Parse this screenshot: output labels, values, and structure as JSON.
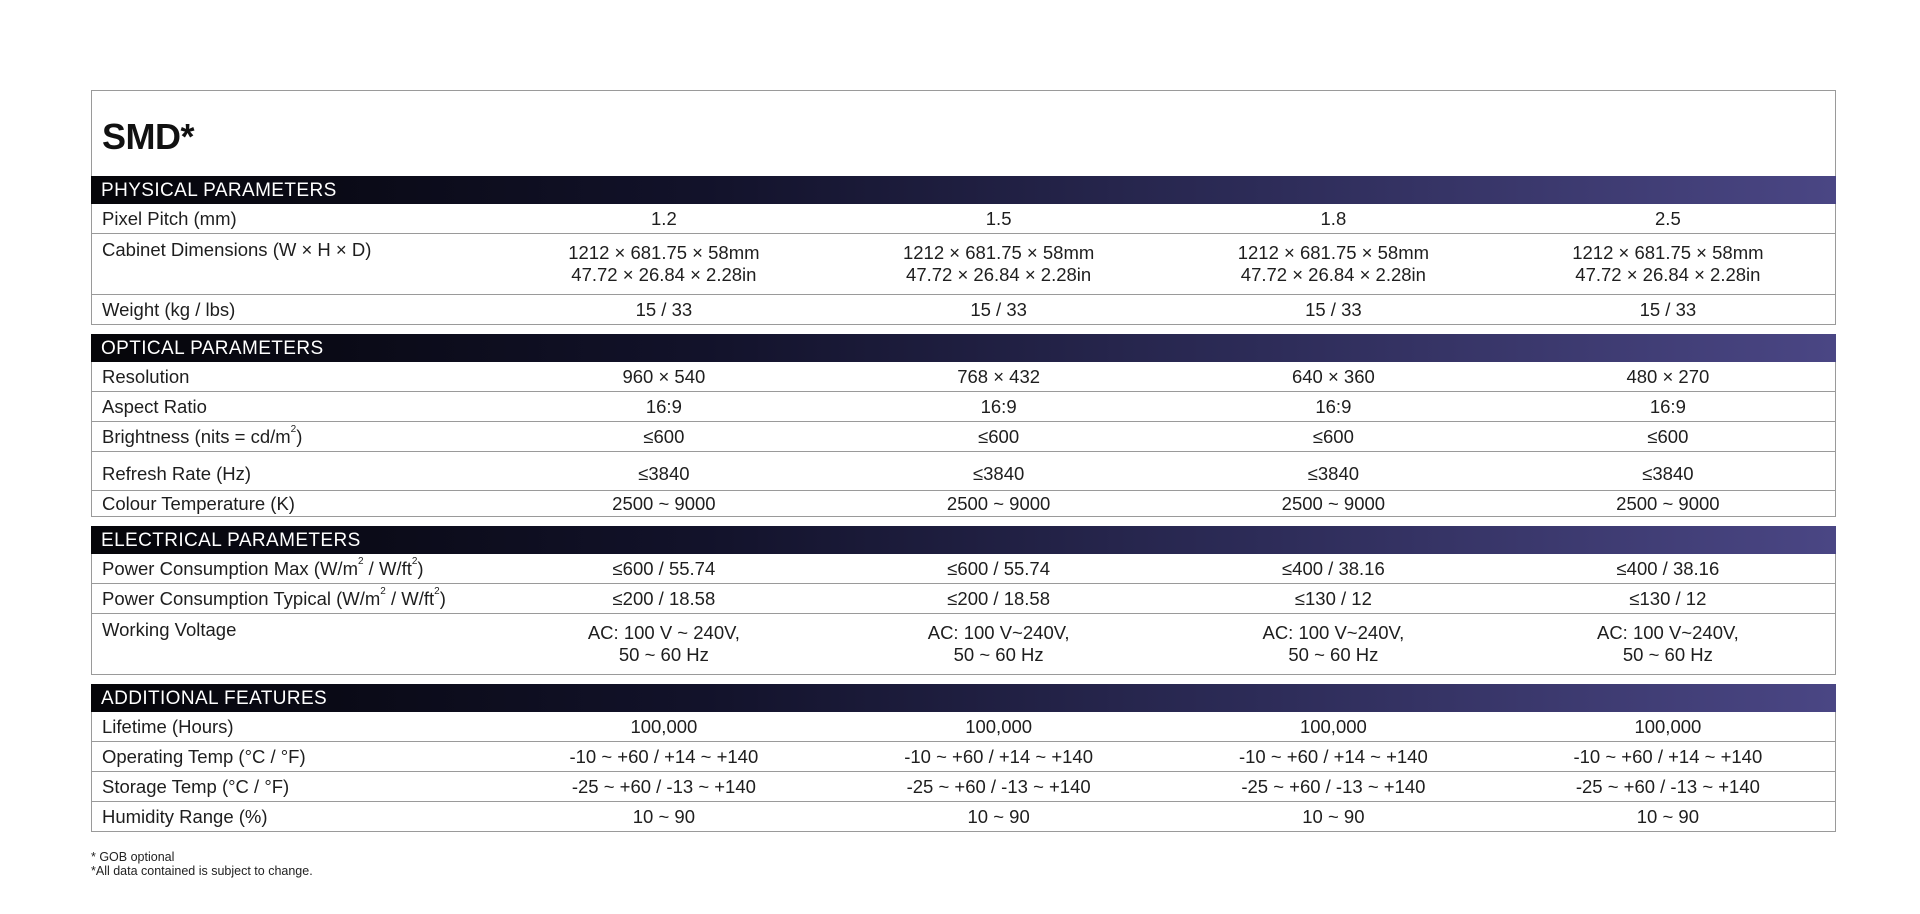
{
  "title": "SMD*",
  "sections": [
    {
      "heading": "PHYSICAL PARAMETERS",
      "rows": [
        {
          "label": "Pixel Pitch (mm)",
          "values": [
            "1.2",
            "1.5",
            "1.8",
            "2.5"
          ]
        },
        {
          "label": "Cabinet Dimensions (W × H × D)",
          "values": [
            "1212 × 681.75 × 58mm",
            "1212 × 681.75 × 58mm",
            "1212 × 681.75 × 58mm",
            "1212 × 681.75 × 58mm"
          ],
          "values2": [
            "47.72 × 26.84 × 2.28in",
            "47.72 × 26.84 × 2.28in",
            "47.72 × 26.84 × 2.28in",
            "47.72 × 26.84 × 2.28in"
          ]
        },
        {
          "label": "Weight (kg / lbs)",
          "values": [
            "15 / 33",
            "15 / 33",
            "15 / 33",
            "15 / 33"
          ]
        }
      ]
    },
    {
      "heading": "OPTICAL PARAMETERS",
      "rows": [
        {
          "label": "Resolution",
          "values": [
            "960 × 540",
            "768 × 432",
            "640 × 360",
            "480 × 270"
          ]
        },
        {
          "label": "Aspect Ratio",
          "values": [
            "16:9",
            "16:9",
            "16:9",
            "16:9"
          ]
        },
        {
          "label": "Brightness (nits = cd/m",
          "label_sup": "2",
          "label_end": ")",
          "values": [
            "≤600",
            "≤600",
            "≤600",
            "≤600"
          ]
        },
        {
          "label": "Refresh Rate (Hz)",
          "values": [
            "≤3840",
            "≤3840",
            "≤3840",
            "≤3840"
          ]
        },
        {
          "label": "Colour Temperature (K)",
          "values": [
            "2500 ~ 9000",
            "2500 ~ 9000",
            "2500 ~ 9000",
            "2500 ~ 9000"
          ]
        }
      ]
    },
    {
      "heading": "ELECTRICAL PARAMETERS",
      "rows": [
        {
          "label": "Power Consumption Max (W/m",
          "label_sup": "2",
          "label_mid": " / W/ft",
          "label_sup2": "2",
          "label_end": ")",
          "values": [
            "≤600 / 55.74",
            "≤600 / 55.74",
            "≤400 / 38.16",
            "≤400 / 38.16"
          ]
        },
        {
          "label": "Power Consumption Typical (W/m",
          "label_sup": "2",
          "label_mid": " / W/ft",
          "label_sup2": "2",
          "label_end": ")",
          "values": [
            "≤200 / 18.58",
            "≤200 / 18.58",
            "≤130 / 12",
            "≤130 / 12"
          ]
        },
        {
          "label": "Working Voltage",
          "values": [
            "AC: 100 V ~ 240V,",
            "AC: 100 V~240V,",
            "AC: 100 V~240V,",
            "AC: 100 V~240V,"
          ],
          "values2": [
            "50 ~ 60 Hz",
            "50 ~ 60 Hz",
            "50 ~ 60 Hz",
            "50 ~ 60 Hz"
          ]
        }
      ]
    },
    {
      "heading": "ADDITIONAL FEATURES",
      "rows": [
        {
          "label": "Lifetime (Hours)",
          "values": [
            "100,000",
            "100,000",
            "100,000",
            "100,000"
          ]
        },
        {
          "label": "Operating Temp (°C / °F)",
          "values": [
            "-10 ~ +60 / +14 ~ +140",
            "-10 ~ +60 / +14 ~ +140",
            "-10 ~ +60 / +14 ~ +140",
            "-10 ~ +60 / +14 ~ +140"
          ]
        },
        {
          "label": "Storage Temp (°C / °F)",
          "values": [
            "-25 ~ +60 / -13 ~ +140",
            "-25 ~ +60 / -13 ~ +140",
            "-25 ~ +60 / -13 ~ +140",
            "-25 ~ +60 / -13 ~ +140"
          ]
        },
        {
          "label": "Humidity Range (%)",
          "values": [
            "10 ~ 90",
            "10 ~ 90",
            "10 ~ 90",
            "10 ~ 90"
          ]
        }
      ]
    }
  ],
  "notes": [
    "* GOB optional",
    "*All data contained is subject to change."
  ],
  "colors": {
    "header_start": "#050509",
    "header_end": "#4a4684",
    "border": "#9a9a9a"
  }
}
